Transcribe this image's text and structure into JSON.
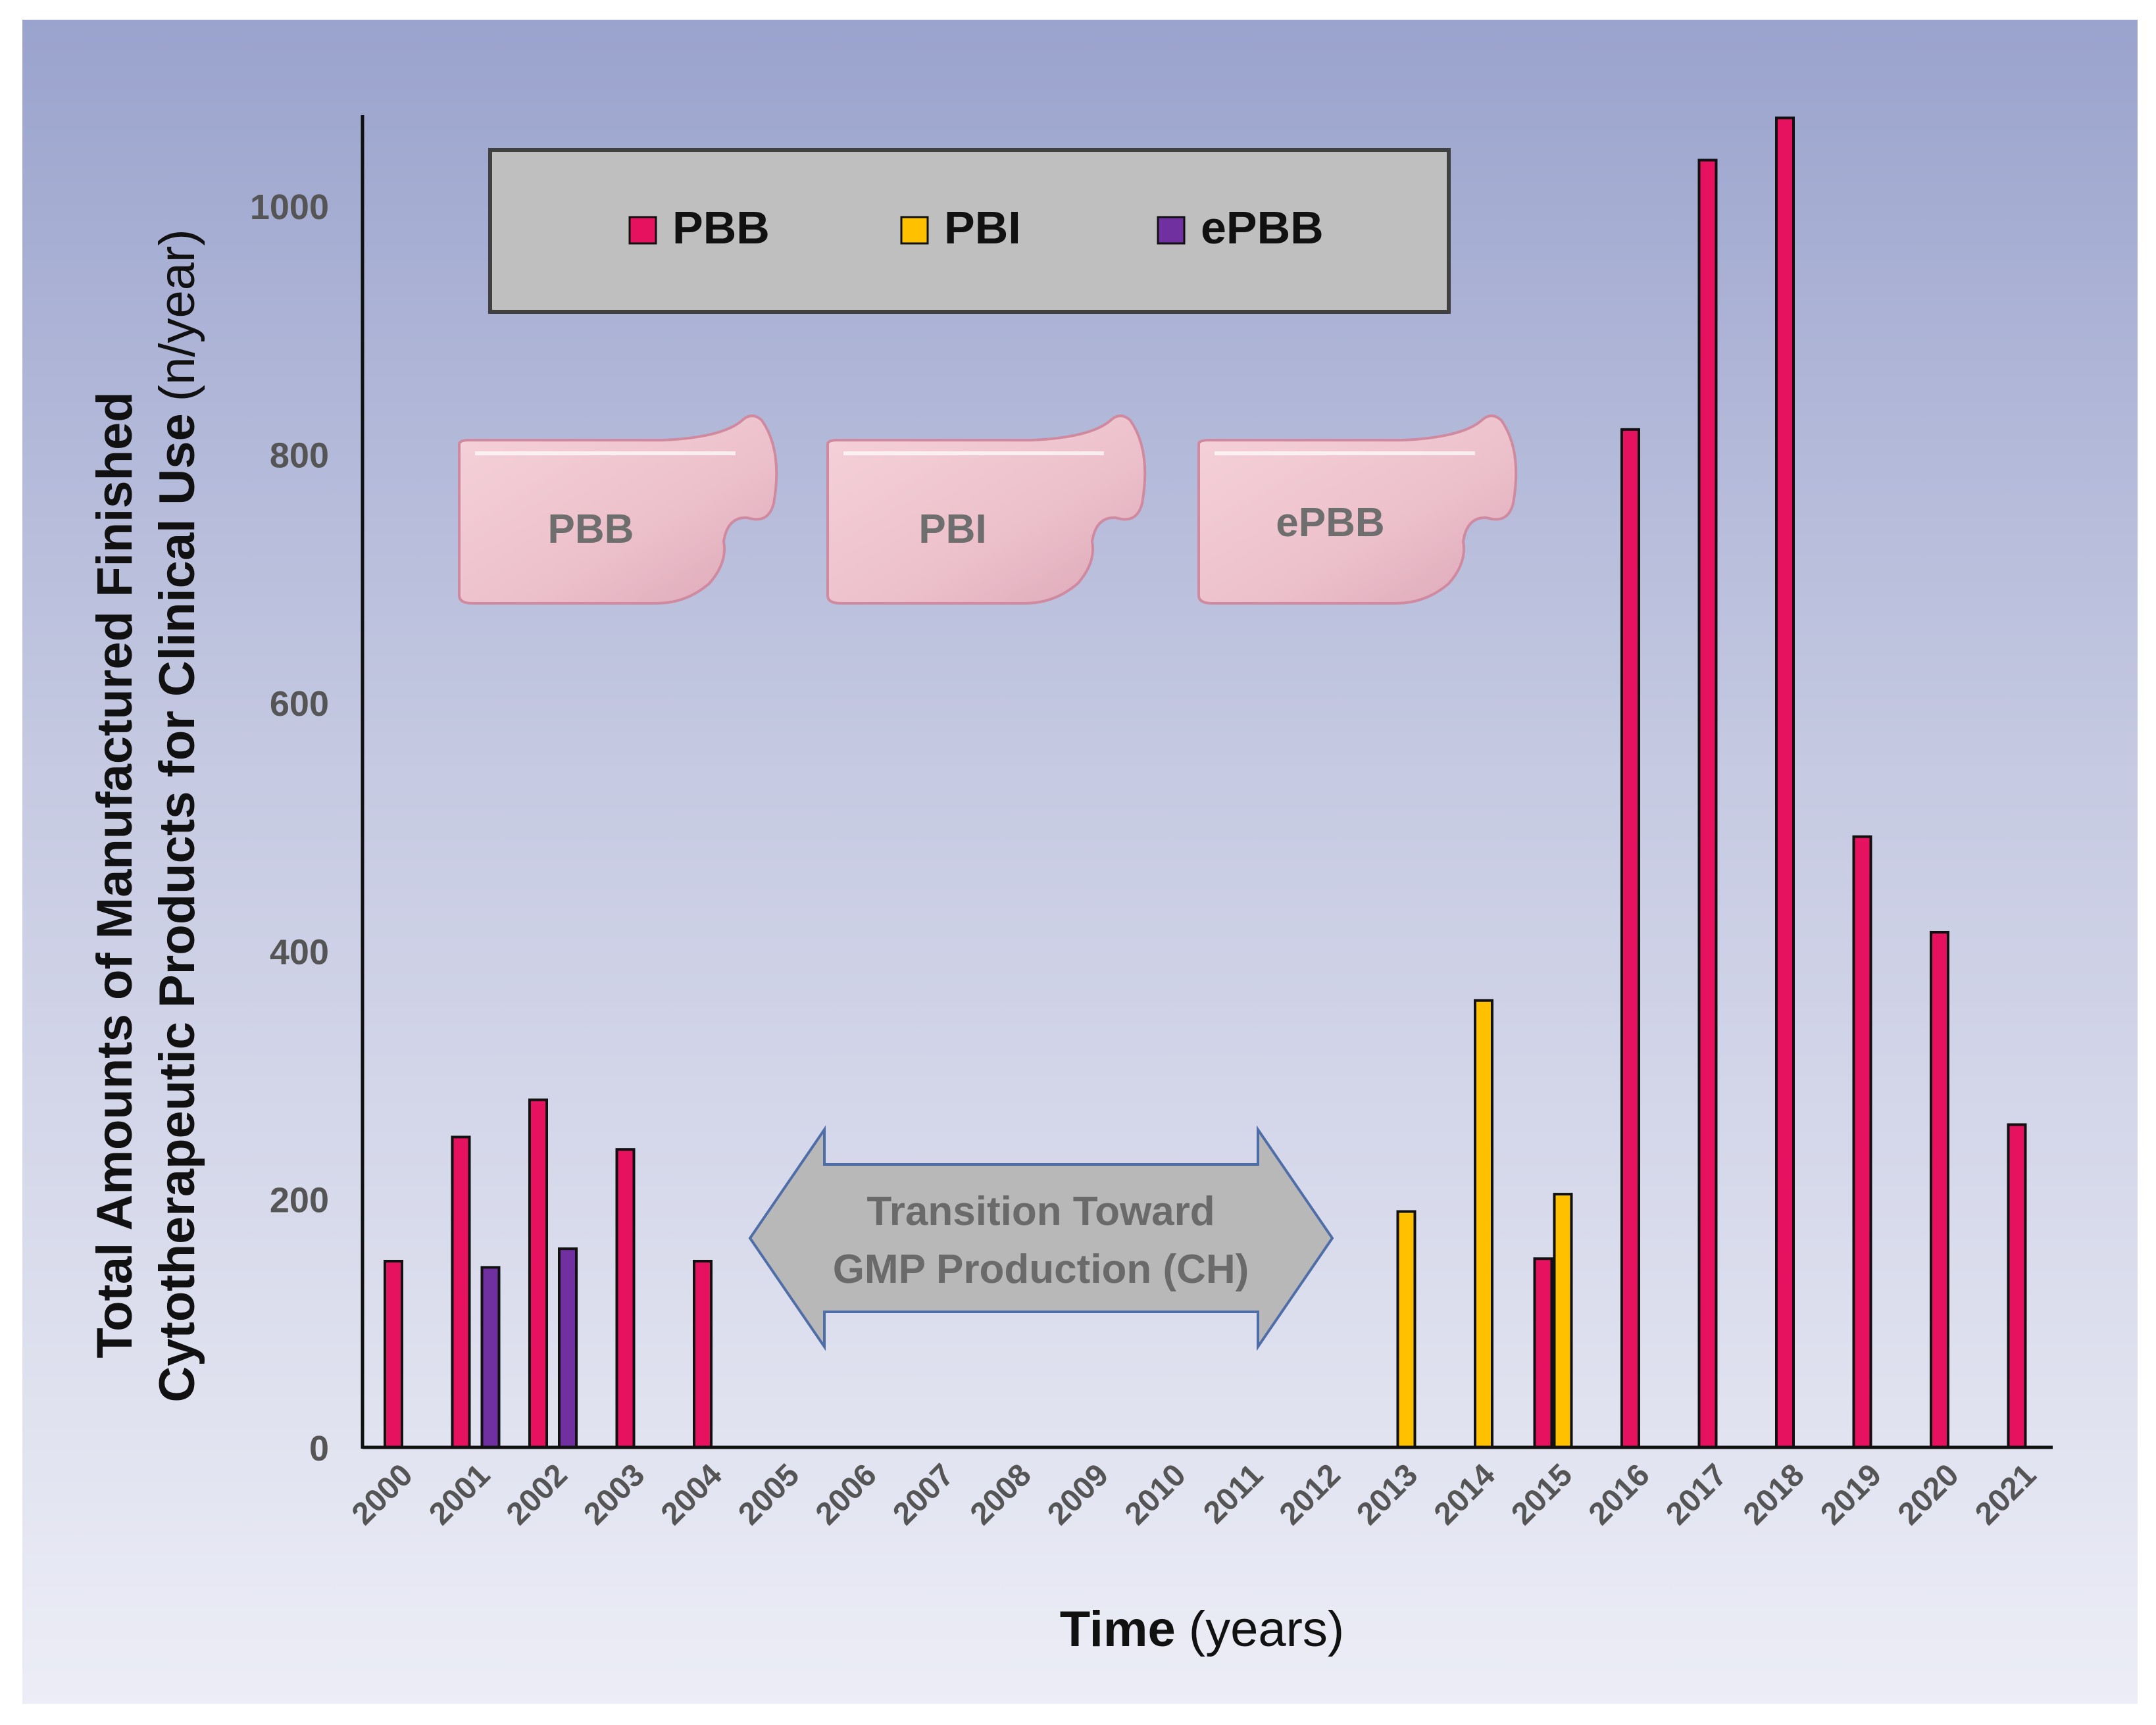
{
  "chart_data": {
    "type": "bar",
    "title": "",
    "xlabel": "Time",
    "xlabel_unit": "(years)",
    "ylabel_line1": "Total Amounts of Manufactured Finished",
    "ylabel_line2": "Cytotherapeutic Products for Clinical Use",
    "ylabel_unit": "(n/year)",
    "ylim": [
      0,
      1100
    ],
    "yticks": [
      0,
      200,
      400,
      600,
      800,
      1000
    ],
    "categories": [
      "2000",
      "2001",
      "2002",
      "2003",
      "2004",
      "2005",
      "2006",
      "2007",
      "2008",
      "2009",
      "2010",
      "2011",
      "2012",
      "2013",
      "2014",
      "2015",
      "2016",
      "2017",
      "2018",
      "2019",
      "2020",
      "2021"
    ],
    "series": [
      {
        "name": "PBB",
        "color": "#e6125f",
        "values": [
          150,
          250,
          280,
          240,
          150,
          null,
          null,
          null,
          null,
          null,
          null,
          null,
          null,
          null,
          null,
          152,
          820,
          1037,
          1071,
          492,
          415,
          260
        ]
      },
      {
        "name": "PBI",
        "color": "#ffc000",
        "values": [
          null,
          null,
          null,
          null,
          null,
          null,
          null,
          null,
          null,
          null,
          null,
          null,
          null,
          190,
          360,
          204,
          null,
          null,
          null,
          null,
          null,
          null
        ]
      },
      {
        "name": "ePBB",
        "color": "#7030a0",
        "values": [
          null,
          145,
          160,
          null,
          null,
          null,
          null,
          null,
          null,
          null,
          null,
          null,
          null,
          null,
          null,
          null,
          null,
          null,
          null,
          null,
          null,
          null
        ]
      }
    ],
    "legend": {
      "position": "top-left",
      "entries": [
        "PBB",
        "PBI",
        "ePBB"
      ]
    },
    "annotations": {
      "arrow_line1": "Transition Toward",
      "arrow_line2": "GMP Production (CH)",
      "patches": [
        "PBB",
        "PBI",
        "ePBB"
      ]
    }
  }
}
